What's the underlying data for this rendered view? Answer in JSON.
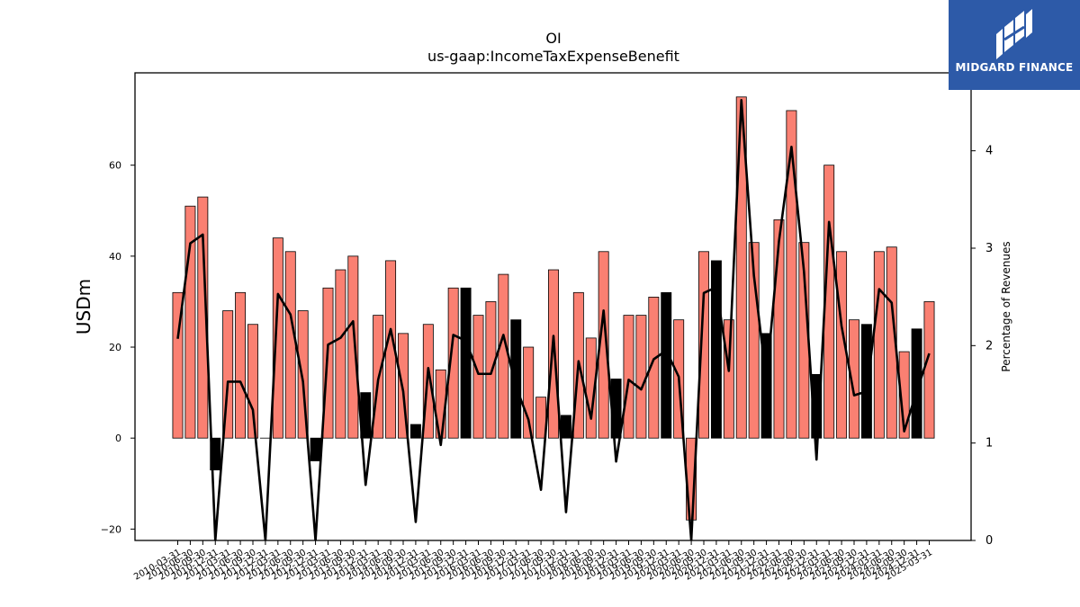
{
  "logo": {
    "text": "MIDGARD FINANCE"
  },
  "chart_data": {
    "type": "bar",
    "title": "OI",
    "subtitle": "us-gaap:IncomeTaxExpenseBenefit",
    "ylabel": "USDm",
    "y2label": "Percentage of Revenues",
    "ylim": [
      -22.5,
      80.3
    ],
    "y2lim": [
      0,
      4.8
    ],
    "yticks": [
      -20,
      0,
      20,
      40,
      60
    ],
    "y2ticks": [
      0,
      1,
      2,
      3,
      4
    ],
    "grid": false,
    "categories": [
      "2010-03-31",
      "2010-06-30",
      "2010-09-30",
      "2010-12-31",
      "2011-03-31",
      "2011-06-30",
      "2011-09-30",
      "2011-12-31",
      "2012-03-31",
      "2012-06-30",
      "2012-09-30",
      "2012-12-31",
      "2013-03-31",
      "2013-06-30",
      "2013-09-30",
      "2013-12-31",
      "2014-03-31",
      "2014-06-30",
      "2014-09-30",
      "2014-12-31",
      "2015-03-31",
      "2015-06-30",
      "2015-09-30",
      "2015-12-31",
      "2016-03-31",
      "2016-06-30",
      "2016-09-30",
      "2016-12-31",
      "2017-03-31",
      "2017-06-30",
      "2017-09-30",
      "2017-12-31",
      "2018-03-31",
      "2018-06-30",
      "2018-09-30",
      "2018-12-31",
      "2019-03-31",
      "2019-06-30",
      "2019-09-30",
      "2019-12-31",
      "2020-03-31",
      "2020-06-30",
      "2020-09-30",
      "2020-12-31",
      "2021-03-31",
      "2021-06-30",
      "2021-09-30",
      "2021-12-31",
      "2022-03-31",
      "2022-06-30",
      "2022-09-30",
      "2022-12-31",
      "2023-03-31",
      "2023-06-30",
      "2023-09-30",
      "2023-12-31",
      "2024-03-31",
      "2024-06-30",
      "2024-09-30",
      "2024-12-31",
      "2025-03-31"
    ],
    "tick_labels": [
      "2010-03-31",
      "2010-06-30",
      "2010-09-30",
      "2010-12-31",
      "2011-03-31",
      "2011-06-30",
      "2011-09-30",
      "2011-12-31",
      "2012-03-31",
      "2012-06-30",
      "2012-09-30",
      "2012-12-31",
      "2013-03-31",
      "2013-06-30",
      "2013-09-30",
      "2013-12-31",
      "2014-03-31",
      "2014-06-30",
      "2014-09-30",
      "2014-12-31",
      "2015-03-31",
      "2015-06-30",
      "2015-09-30",
      "2015-12-31",
      "2016-03-31",
      "2016-06-30",
      "2016-09-30",
      "2016-12-31",
      "2017-03-31",
      "2017-06-30",
      "2017-09-30",
      "2017-12-31",
      "2018-03-31",
      "2018-06-30",
      "2018-09-30",
      "2018-12-31",
      "2019-03-31",
      "2019-06-30",
      "2019-09-30",
      "2019-12-31",
      "2020-03-31",
      "2020-06-30",
      "2020-09-30",
      "2020-12-31",
      "2021-03-31",
      "2021-06-30",
      "2021-09-30",
      "2021-12-31",
      "2022-03-31",
      "2022-06-30",
      "2022-09-30",
      "2022-12-31",
      "2023-03-31",
      "2023-06-30",
      "2023-09-30",
      "2023-12-31",
      "2024-03-31",
      "2024-06-30",
      "2024-09-30",
      "2024-12-31",
      "2025-03-31"
    ],
    "series": [
      {
        "type": "bar",
        "axis": "left",
        "values": [
          32,
          51,
          53,
          -7,
          28,
          32,
          25,
          0,
          44,
          41,
          28,
          -5,
          33,
          37,
          40,
          10,
          27,
          39,
          23,
          3,
          25,
          15,
          33,
          33,
          27,
          30,
          36,
          26,
          20,
          9,
          37,
          5,
          32,
          22,
          41,
          13,
          27,
          27,
          31,
          32,
          26,
          -18,
          41,
          39,
          26,
          75,
          43,
          23,
          48,
          72,
          43,
          14,
          60,
          41,
          26,
          25,
          41,
          42,
          19,
          24,
          30
        ],
        "colors": [
          "#fa8072",
          "#000000"
        ],
        "color_index": [
          0,
          0,
          0,
          1,
          0,
          0,
          0,
          0,
          0,
          0,
          0,
          1,
          0,
          0,
          0,
          1,
          0,
          0,
          0,
          1,
          0,
          0,
          0,
          1,
          0,
          0,
          0,
          1,
          0,
          0,
          0,
          1,
          0,
          0,
          0,
          1,
          0,
          0,
          0,
          1,
          0,
          0,
          0,
          1,
          0,
          0,
          0,
          1,
          0,
          0,
          0,
          1,
          0,
          0,
          0,
          1,
          0,
          0,
          0,
          1,
          0
        ]
      },
      {
        "type": "line",
        "axis": "right",
        "color": "#000000",
        "values": [
          2.07,
          3.05,
          3.14,
          0.0,
          1.63,
          1.63,
          1.34,
          0.0,
          2.53,
          2.32,
          1.63,
          0.0,
          2.01,
          2.08,
          2.25,
          0.57,
          1.65,
          2.17,
          1.53,
          0.19,
          1.77,
          0.98,
          2.11,
          2.05,
          1.71,
          1.71,
          2.11,
          1.58,
          1.24,
          0.52,
          2.1,
          0.29,
          1.84,
          1.25,
          2.36,
          0.81,
          1.65,
          1.55,
          1.86,
          1.95,
          1.68,
          0.0,
          2.54,
          2.6,
          1.74,
          4.52,
          2.72,
          1.63,
          3.07,
          4.04,
          2.76,
          0.83,
          3.27,
          2.2,
          1.49,
          1.53,
          2.58,
          2.44,
          1.12,
          1.53,
          1.92
        ]
      }
    ]
  }
}
